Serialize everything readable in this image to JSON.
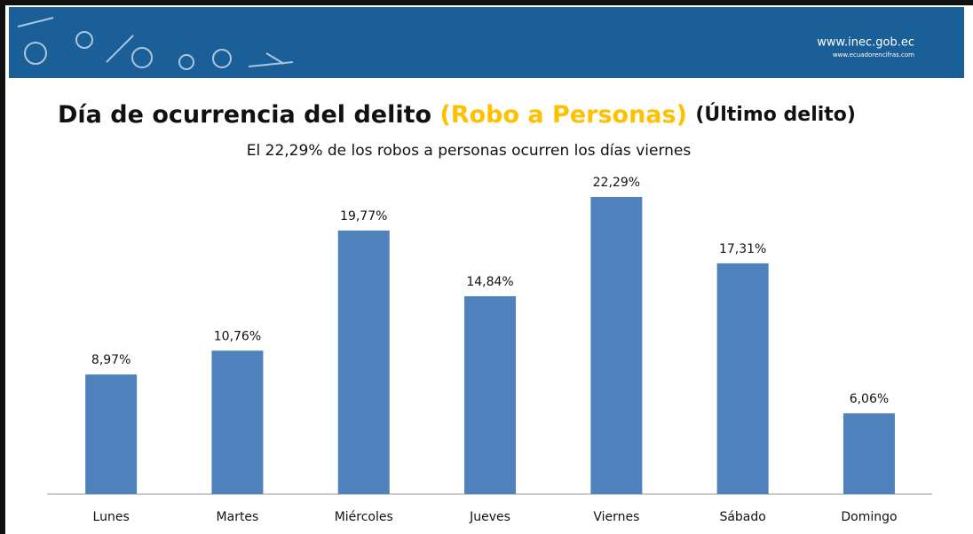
{
  "header": {
    "url": "www.inec.gob.ec",
    "sub_url": "www.ecuadorencifras.com"
  },
  "chart_data": {
    "type": "bar",
    "title": "Día de ocurrencia del delito",
    "title_highlight": "(Robo a Personas)",
    "title_suffix": "(Último delito)",
    "subtitle": "El 22,29% de los robos a personas ocurren los días viernes",
    "categories": [
      "Lunes",
      "Martes",
      "Miércoles",
      "Jueves",
      "Viernes",
      "Sábado",
      "Domingo"
    ],
    "values": [
      8.97,
      10.76,
      19.77,
      14.84,
      22.29,
      17.31,
      6.06
    ],
    "value_labels": [
      "8,97%",
      "10,76%",
      "19,77%",
      "14,84%",
      "22,29%",
      "17,31%",
      "6,06%"
    ],
    "color": "#4f81bd"
  }
}
